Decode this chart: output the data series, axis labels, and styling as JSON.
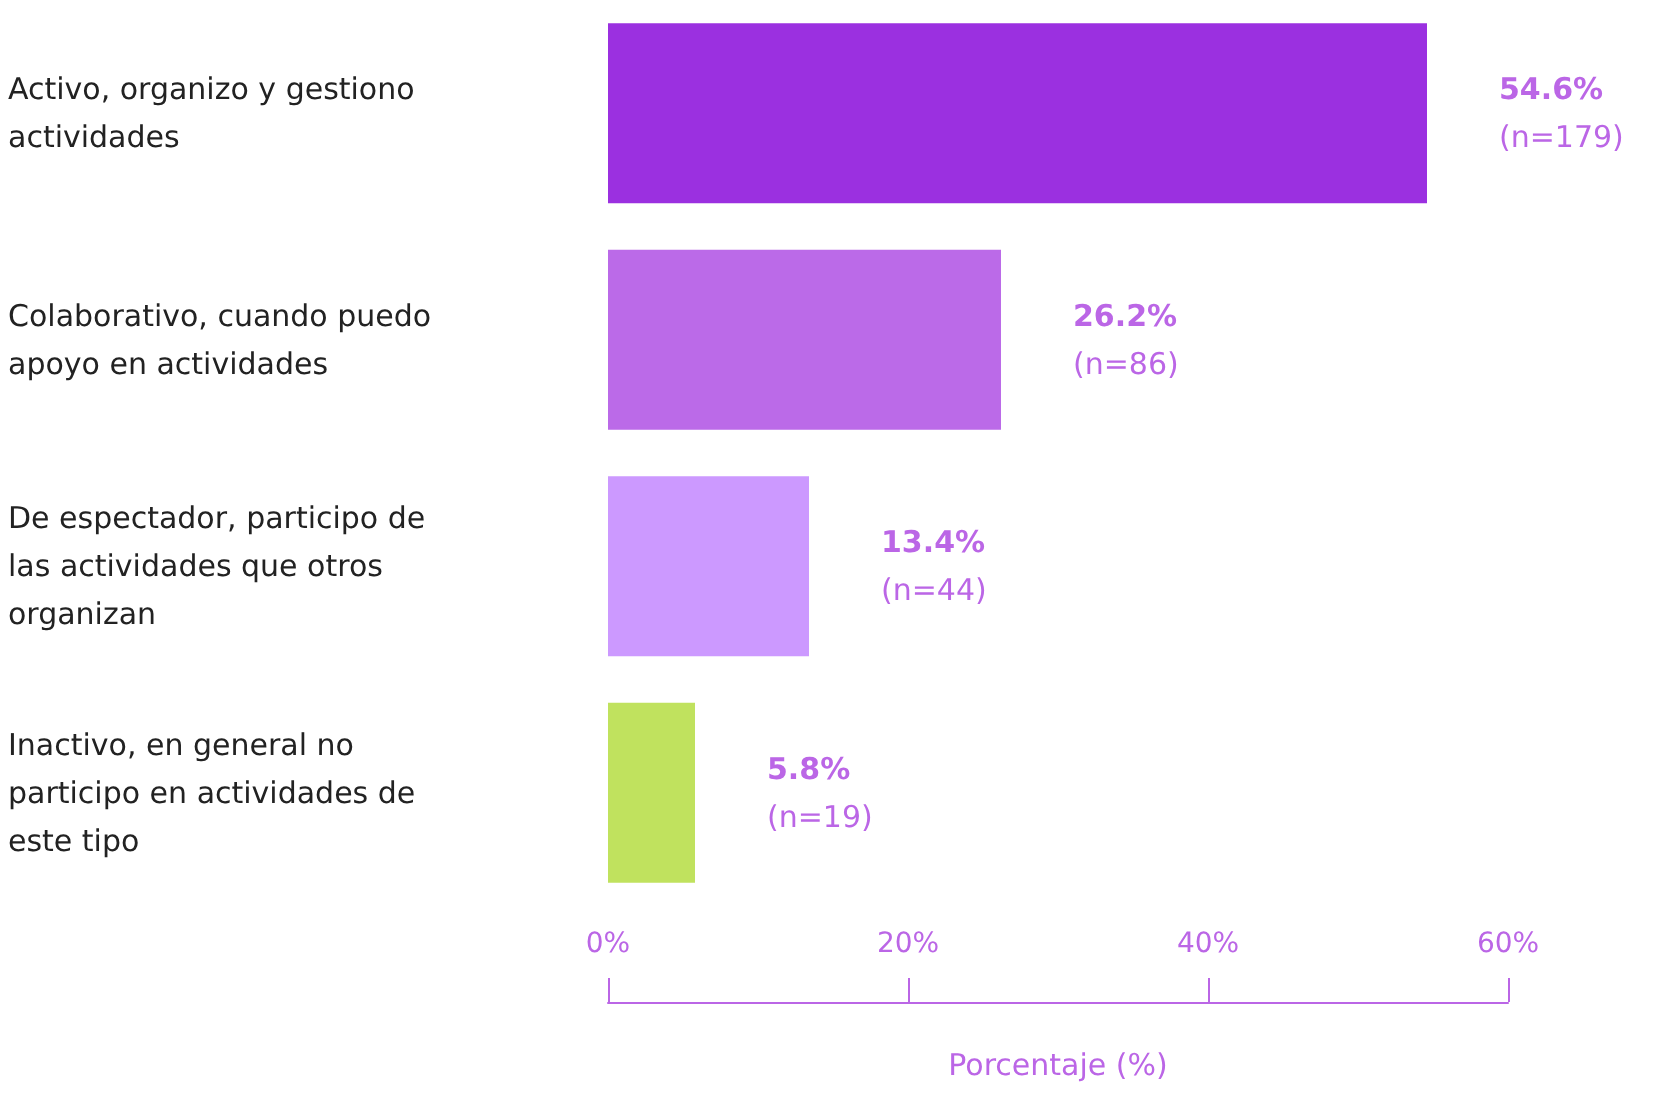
{
  "chart_data": {
    "type": "bar",
    "orientation": "horizontal",
    "xlabel": "Porcentaje (%)",
    "categories": [
      "Activo, organizo y gestiono actividades",
      "Colaborativo, cuando puedo apoyo en actividades",
      "De espectador, participo de las actividades que otros organizan",
      "Inactivo, en general no participo en actividades de este tipo"
    ],
    "values": [
      54.6,
      26.2,
      13.4,
      5.8
    ],
    "colors": [
      "#9b30e0",
      "#bb6ae8",
      "#cc99ff",
      "#c0e25e"
    ],
    "value_labels": [
      "54.6%\n(n=179)",
      "26.2%\n(n=86)",
      "13.4%\n(n=44)",
      "5.8%\n(n=19)"
    ],
    "xlim": [
      0,
      60
    ],
    "xticks": [
      {
        "value": 0,
        "label": "0%"
      },
      {
        "value": 20,
        "label": "20%"
      },
      {
        "value": 40,
        "label": "40%"
      },
      {
        "value": 60,
        "label": "60%"
      }
    ]
  }
}
